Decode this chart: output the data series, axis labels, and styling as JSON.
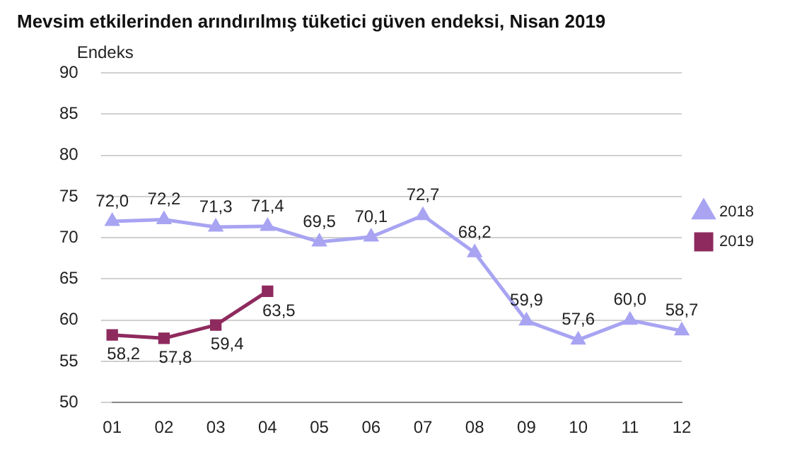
{
  "chart_data": {
    "type": "line",
    "title": "Mevsim etkilerinden arındırılmış tüketici güven endeksi, Nisan 2019",
    "ylabel": "Endeks",
    "categories": [
      "01",
      "02",
      "03",
      "04",
      "05",
      "06",
      "07",
      "08",
      "09",
      "10",
      "11",
      "12"
    ],
    "series": [
      {
        "name": "2018",
        "color": "#a8a4f2",
        "marker": "triangle",
        "values": [
          72.0,
          72.2,
          71.3,
          71.4,
          69.5,
          70.1,
          72.7,
          68.2,
          59.9,
          57.6,
          60.0,
          58.7
        ],
        "value_labels": [
          "72,0",
          "72,2",
          "71,3",
          "71,4",
          "69,5",
          "70,1",
          "72,7",
          "68,2",
          "59,9",
          "57,6",
          "60,0",
          "58,7"
        ]
      },
      {
        "name": "2019",
        "color": "#8e2a5e",
        "marker": "square",
        "values": [
          58.2,
          57.8,
          59.4,
          63.5,
          null,
          null,
          null,
          null,
          null,
          null,
          null,
          null
        ],
        "value_labels": [
          "58,2",
          "57,8",
          "59,4",
          "63,5",
          null,
          null,
          null,
          null,
          null,
          null,
          null,
          null
        ]
      }
    ],
    "ylim": [
      50,
      90
    ],
    "yticks": [
      50,
      55,
      60,
      65,
      70,
      75,
      80,
      85,
      90
    ],
    "grid": "y",
    "legend": "right"
  }
}
